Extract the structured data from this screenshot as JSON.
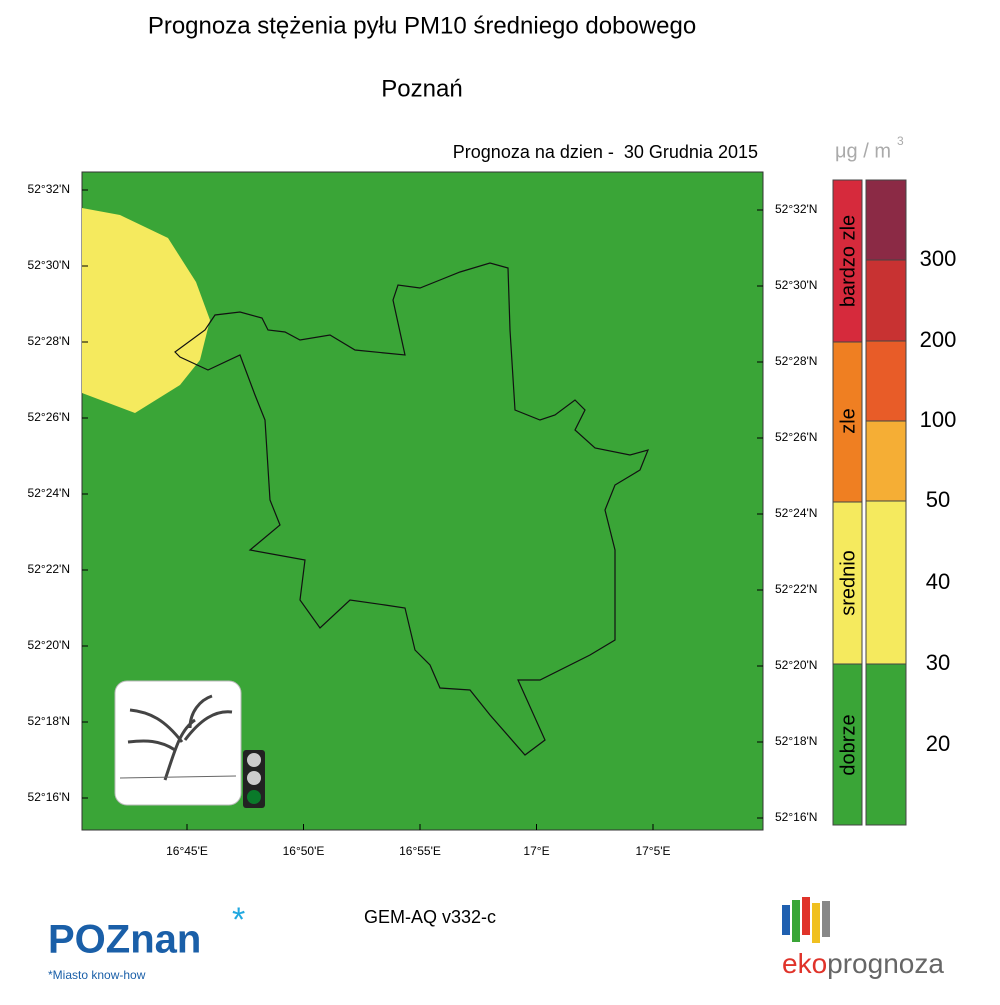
{
  "header": {
    "title": "Prognoza stężenia pyłu PM10 średniego dobowego",
    "city": "Poznań",
    "forecast": "Prognoza na dzien -  30 Grudnia 2015"
  },
  "map": {
    "lat_left": [
      "52°32'N",
      "52°30'N",
      "52°28'N",
      "52°26'N",
      "52°24'N",
      "52°22'N",
      "52°20'N",
      "52°18'N",
      "52°16'N"
    ],
    "lat_right": [
      "52°32'N",
      "52°30'N",
      "52°28'N",
      "52°26'N",
      "52°24'N",
      "52°22'N",
      "52°20'N",
      "52°18'N",
      "52°16'N"
    ],
    "lon": [
      "16°45'E",
      "16°50'E",
      "16°55'E",
      "17°E",
      "17°5'E"
    ]
  },
  "legend": {
    "unit": "μg / m",
    "unit_power": "3",
    "categories": [
      "bardzo zle",
      "zle",
      "srednio",
      "dobrze"
    ],
    "levels": [
      300,
      200,
      100,
      50,
      40,
      30,
      20
    ]
  },
  "footer": {
    "model": "GEM-AQ v332-c",
    "left_logo": "POZnan",
    "left_tagline": "Miasto know-how",
    "right_logo_a": "eko",
    "right_logo_b": "prognoza"
  }
}
